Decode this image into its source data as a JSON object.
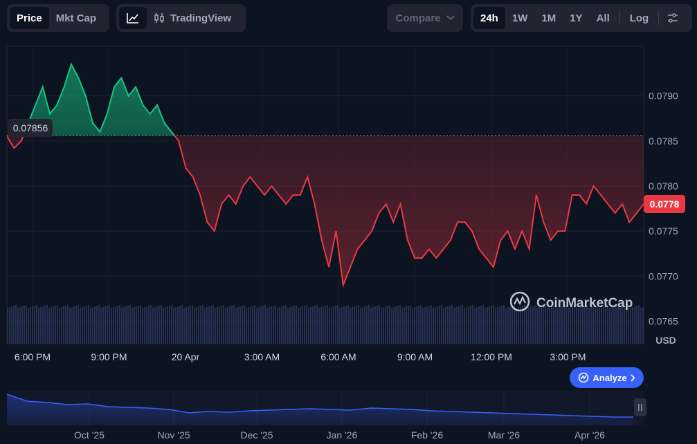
{
  "toolbar": {
    "price_label": "Price",
    "mktcap_label": "Mkt Cap",
    "tradingview_label": "TradingView",
    "compare_label": "Compare",
    "ranges": [
      "24h",
      "1W",
      "1M",
      "1Y",
      "All"
    ],
    "active_range": "24h",
    "log_label": "Log"
  },
  "chart_data": {
    "type": "area",
    "baseline_value": 0.07856,
    "current_value": 0.0778,
    "y_ticks": [
      0.0765,
      0.077,
      0.0775,
      0.078,
      0.0785,
      0.079
    ],
    "ylim": [
      0.07625,
      0.07955
    ],
    "y_unit": "USD",
    "x_ticks": [
      "6:00 PM",
      "9:00 PM",
      "20 Apr",
      "3:00 AM",
      "6:00 AM",
      "9:00 AM",
      "12:00 PM",
      "3:00 PM"
    ],
    "series": [
      {
        "values": [
          0.07855,
          0.07842,
          0.0785,
          0.0787,
          0.0789,
          0.0791,
          0.0788,
          0.0789,
          0.0791,
          0.07935,
          0.0792,
          0.079,
          0.0787,
          0.0786,
          0.0788,
          0.0791,
          0.0792,
          0.079,
          0.0791,
          0.0789,
          0.0788,
          0.0789,
          0.0787,
          0.0786,
          0.0785,
          0.0782,
          0.0781,
          0.0779,
          0.0776,
          0.0775,
          0.0778,
          0.0779,
          0.0778,
          0.078,
          0.0781,
          0.078,
          0.0779,
          0.078,
          0.0779,
          0.0778,
          0.0779,
          0.0779,
          0.0781,
          0.0778,
          0.0774,
          0.0771,
          0.0775,
          0.0769,
          0.0771,
          0.0773,
          0.0774,
          0.0775,
          0.0777,
          0.0778,
          0.0776,
          0.0778,
          0.0774,
          0.0772,
          0.0772,
          0.0773,
          0.0772,
          0.0773,
          0.0774,
          0.0776,
          0.0776,
          0.0775,
          0.0773,
          0.0772,
          0.0771,
          0.0774,
          0.0775,
          0.0773,
          0.0775,
          0.0773,
          0.0779,
          0.0776,
          0.0774,
          0.0775,
          0.0775,
          0.0779,
          0.0779,
          0.0778,
          0.078,
          0.0779,
          0.0778,
          0.0777,
          0.0778,
          0.0776,
          0.0777,
          0.0778
        ]
      }
    ],
    "volume_note": "",
    "overview": {
      "x_ticks": [
        "Oct '25",
        "Nov '25",
        "Dec '25",
        "Jan '26",
        "Feb '26",
        "Mar '26",
        "Apr '26"
      ]
    }
  },
  "watermark": "CoinMarketCap",
  "analyze_label": "Analyze"
}
